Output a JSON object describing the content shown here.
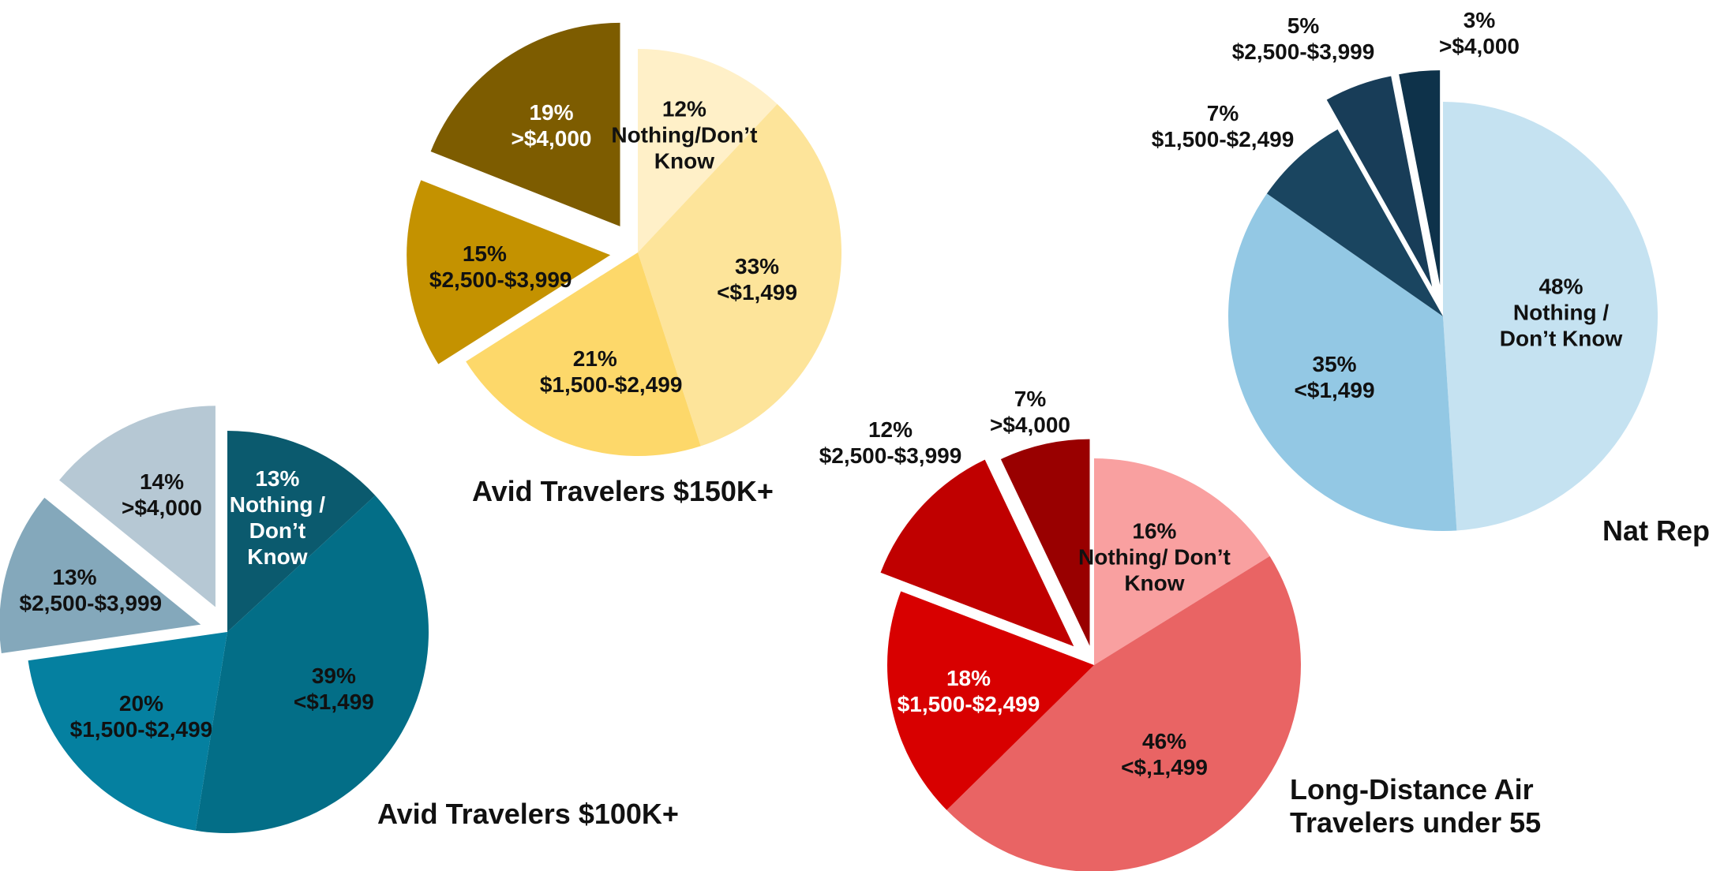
{
  "chart_data": [
    {
      "type": "pie",
      "title": "Avid Travelers $100K+",
      "categories": [
        "Nothing / Don’t Know",
        "<$1,499",
        "$1,500-$2,499",
        "$2,500-$3,999",
        ">$4,000"
      ],
      "values": [
        13,
        39,
        20,
        13,
        14
      ],
      "value_labels": [
        "13%",
        "39%",
        "20%",
        "13%",
        "14%"
      ],
      "colors": [
        "#0b5a6e",
        "#036e87",
        "#0580a0",
        "#84a8bb",
        "#b6c8d4"
      ]
    },
    {
      "type": "pie",
      "title": "Avid Travelers $150K+",
      "categories": [
        "Nothing/Don’t Know",
        "<$1,499",
        "$1,500-$2,499",
        "$2,500-$3,999",
        ">$4,000"
      ],
      "values": [
        12,
        33,
        21,
        15,
        19
      ],
      "value_labels": [
        "12%",
        "33%",
        "21%",
        "15%",
        "19%"
      ],
      "colors": [
        "#fff0c8",
        "#fde49a",
        "#fdd86a",
        "#c49200",
        "#7d5c00"
      ]
    },
    {
      "type": "pie",
      "title": "Long-Distance Air Travelers under 55",
      "categories": [
        "Nothing/ Don’t Know",
        "<$,1,499",
        "$1,500-$2,499",
        "$2,500-$3,999",
        ">$4,000"
      ],
      "values": [
        16,
        46,
        18,
        12,
        7
      ],
      "value_labels": [
        "16%",
        "46%",
        "18%",
        "12%",
        "7%"
      ],
      "colors": [
        "#f9a0a0",
        "#e96464",
        "#d80000",
        "#c00000",
        "#990000"
      ]
    },
    {
      "type": "pie",
      "title": "Nat Rep",
      "categories": [
        "Nothing / Don’t Know",
        "<$1,499",
        "$1,500-$2,499",
        "$2,500-$3,999",
        ">$4,000"
      ],
      "values": [
        48,
        35,
        7,
        5,
        3
      ],
      "value_labels": [
        "48%",
        "35%",
        "7%",
        "5%",
        "3%"
      ],
      "colors": [
        "#c5e2f1",
        "#93c8e4",
        "#1a4560",
        "#183d58",
        "#0e324a"
      ]
    }
  ]
}
